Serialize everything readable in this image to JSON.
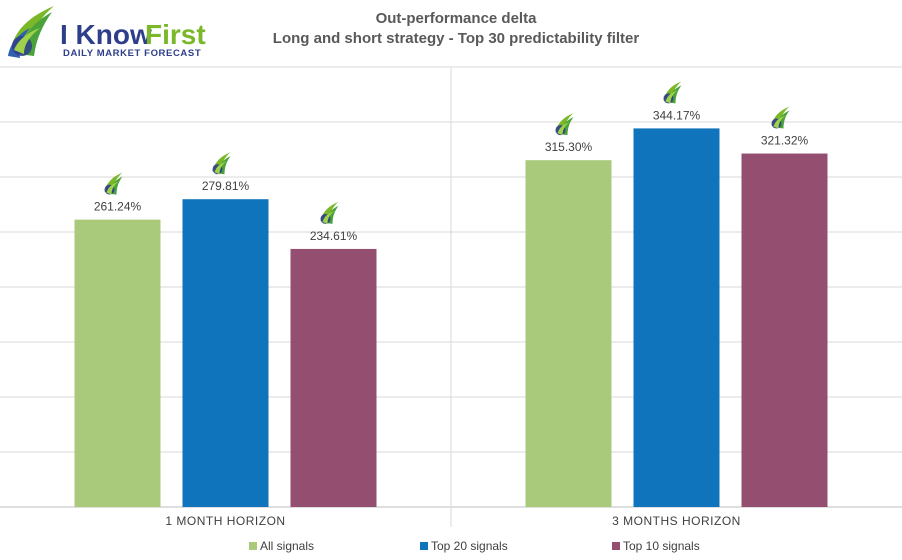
{
  "logo": {
    "name_part1": "I Know",
    "name_part2": "First",
    "tagline": "Daily Market Forecast"
  },
  "chart_data": {
    "type": "bar",
    "title": "Out-performance delta",
    "subtitle": "Long and short strategy - Top 30 predictability filter",
    "categories": [
      "1 MONTH HORIZON",
      "3 MONTHS HORIZON"
    ],
    "series": [
      {
        "name": "All signals",
        "color": "#a9c97b",
        "values": [
          261.24,
          315.3
        ],
        "labels": [
          "261.24%",
          "315.30%"
        ]
      },
      {
        "name": "Top 20 signals",
        "color": "#0f74bc",
        "values": [
          279.81,
          344.17
        ],
        "labels": [
          "279.81%",
          "344.17%"
        ]
      },
      {
        "name": "Top 10 signals",
        "color": "#944e6f",
        "values": [
          234.61,
          321.32
        ],
        "labels": [
          "234.61%",
          "321.32%"
        ]
      }
    ],
    "ylim": [
      0,
      400
    ],
    "grid": true,
    "legend": "bottom",
    "xlabel": "",
    "ylabel": ""
  }
}
